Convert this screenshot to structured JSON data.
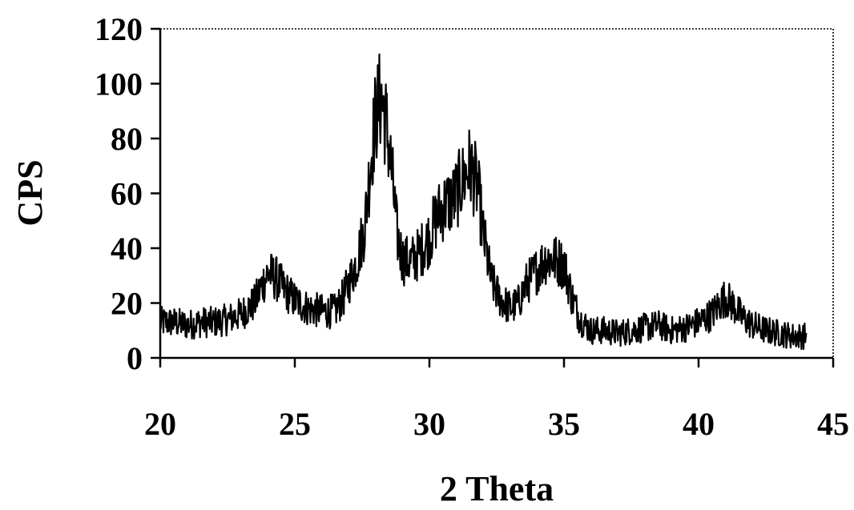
{
  "chart_data": {
    "type": "line",
    "title": "",
    "xlabel": "2 Theta",
    "ylabel": "CPS",
    "xlim": [
      20,
      45
    ],
    "ylim": [
      0,
      120
    ],
    "xticks": [
      "20",
      "25",
      "30",
      "35",
      "40",
      "45"
    ],
    "yticks": [
      "0",
      "20",
      "40",
      "60",
      "80",
      "100",
      "120"
    ],
    "grid": false,
    "legend": "none",
    "line_color": "#000000",
    "series": [
      {
        "x": [
          20.0,
          20.5,
          21.0,
          21.5,
          22.0,
          22.5,
          23.0,
          23.5,
          23.8,
          24.0,
          24.3,
          24.6,
          25.0,
          25.5,
          26.0,
          26.5,
          26.8,
          27.0,
          27.3,
          27.6,
          27.8,
          28.0,
          28.2,
          28.4,
          28.6,
          28.8,
          29.0,
          29.3,
          29.6,
          30.0,
          30.3,
          30.6,
          30.9,
          31.2,
          31.5,
          31.8,
          32.0,
          32.3,
          32.6,
          33.0,
          33.3,
          33.6,
          34.0,
          34.3,
          34.6,
          35.0,
          35.3,
          35.6,
          36.0,
          36.5,
          37.0,
          37.5,
          38.0,
          38.5,
          39.0,
          39.5,
          40.0,
          40.5,
          40.8,
          41.0,
          41.3,
          41.6,
          42.0,
          42.5,
          43.0,
          43.5,
          44.0
        ],
        "y": [
          13,
          13,
          12,
          13,
          13,
          14,
          16,
          20,
          27,
          31,
          29,
          25,
          21,
          18,
          17,
          17,
          22,
          27,
          35,
          48,
          70,
          88,
          95,
          85,
          68,
          45,
          36,
          35,
          38,
          44,
          52,
          56,
          58,
          64,
          70,
          62,
          45,
          28,
          22,
          18,
          20,
          27,
          32,
          36,
          36,
          34,
          22,
          14,
          10,
          10,
          9,
          10,
          11,
          12,
          10,
          11,
          13,
          16,
          20,
          22,
          19,
          15,
          12,
          10,
          9,
          8,
          8
        ]
      }
    ]
  }
}
